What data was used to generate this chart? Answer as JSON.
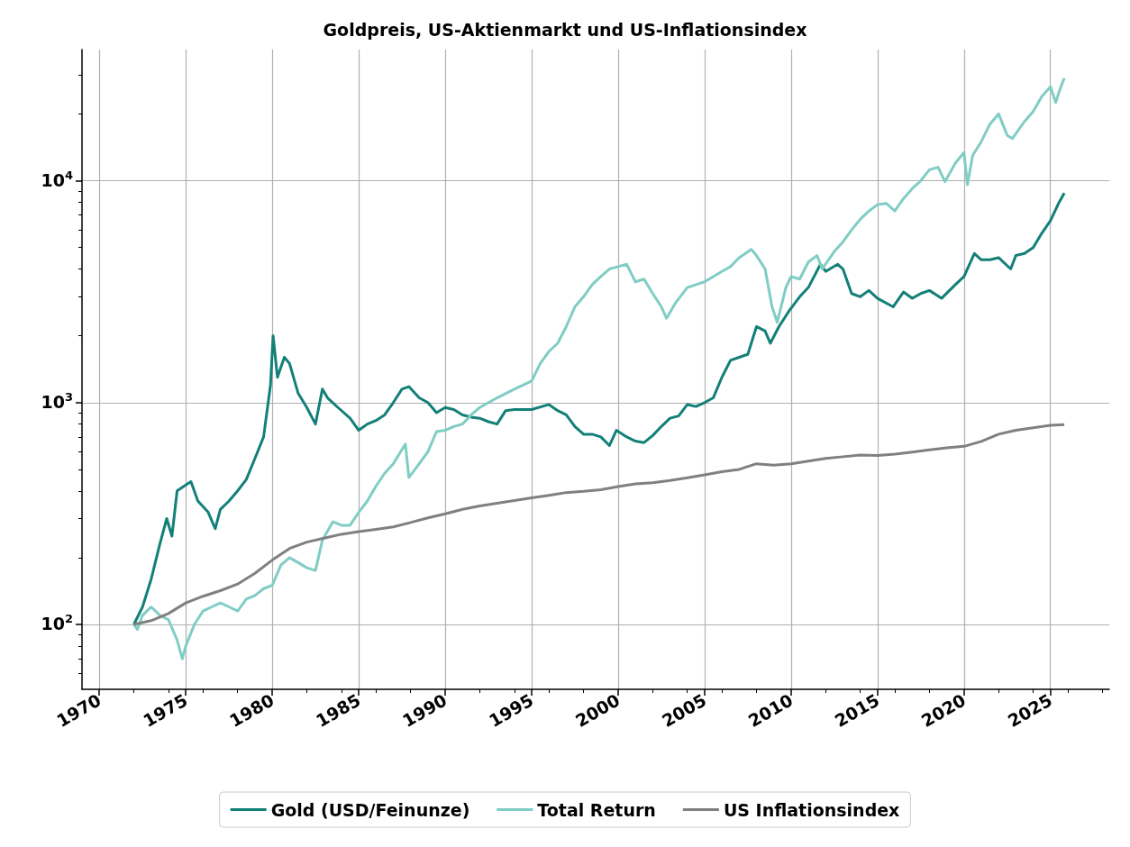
{
  "chart_data": {
    "type": "line",
    "title": "Goldpreis, US-Aktienmarkt und US-Inflationsindex",
    "log": "y",
    "grid": true,
    "legend": "bottom",
    "marker": "none",
    "line_style": "solid",
    "xlim": [
      1969,
      2028.4
    ],
    "xticks": [
      1970,
      1975,
      1980,
      1985,
      1990,
      1995,
      2000,
      2005,
      2010,
      2015,
      2020,
      2025
    ],
    "ylim": [
      51,
      39000
    ],
    "yticks": [
      {
        "value": 100,
        "label": "10$^{2}$"
      },
      {
        "value": 1000,
        "label": "10$^{3}$"
      },
      {
        "value": 10000,
        "label": "10$^{4}$"
      }
    ],
    "series": [
      {
        "name": "Gold (USD/Feinunze)",
        "color": "#138078",
        "x": [
          1972.0,
          1972.5,
          1973.0,
          1973.5,
          1973.9,
          1974.2,
          1974.5,
          1974.9,
          1975.3,
          1975.7,
          1976.3,
          1976.7,
          1977.0,
          1977.5,
          1978.0,
          1978.5,
          1979.0,
          1979.5,
          1979.9,
          1980.05,
          1980.3,
          1980.7,
          1981.0,
          1981.5,
          1982.0,
          1982.5,
          1982.9,
          1983.2,
          1983.8,
          1984.5,
          1985.0,
          1985.5,
          1986.0,
          1986.5,
          1987.0,
          1987.5,
          1987.9,
          1988.5,
          1989.0,
          1989.5,
          1990.0,
          1990.5,
          1991.0,
          1991.5,
          1992.0,
          1992.5,
          1993.0,
          1993.5,
          1994.0,
          1995.0,
          1996.0,
          1996.5,
          1997.0,
          1997.5,
          1998.0,
          1998.5,
          1999.0,
          1999.5,
          1999.9,
          2000.5,
          2001.0,
          2001.5,
          2002.0,
          2002.5,
          2003.0,
          2003.5,
          2004.0,
          2004.5,
          2005.0,
          2005.5,
          2006.0,
          2006.5,
          2007.0,
          2007.5,
          2008.0,
          2008.5,
          2008.8,
          2009.3,
          2009.9,
          2010.5,
          2011.0,
          2011.7,
          2012.0,
          2012.7,
          2013.0,
          2013.5,
          2014.0,
          2014.5,
          2015.0,
          2015.9,
          2016.5,
          2017.0,
          2017.5,
          2018.0,
          2018.7,
          2019.5,
          2020.0,
          2020.6,
          2021.0,
          2021.5,
          2022.0,
          2022.7,
          2023.0,
          2023.5,
          2024.0,
          2024.5,
          2025.0,
          2025.5,
          2025.8
        ],
        "values": [
          100,
          120,
          160,
          230,
          300,
          250,
          400,
          420,
          440,
          360,
          320,
          270,
          330,
          360,
          400,
          450,
          560,
          700,
          1200,
          2000,
          1300,
          1600,
          1500,
          1100,
          950,
          800,
          1150,
          1050,
          950,
          850,
          750,
          800,
          830,
          880,
          1000,
          1150,
          1180,
          1050,
          1000,
          900,
          950,
          930,
          880,
          860,
          850,
          820,
          800,
          920,
          930,
          930,
          980,
          920,
          880,
          780,
          720,
          720,
          700,
          640,
          750,
          700,
          670,
          660,
          710,
          780,
          850,
          870,
          980,
          960,
          1000,
          1050,
          1300,
          1550,
          1600,
          1650,
          2200,
          2100,
          1850,
          2200,
          2600,
          3000,
          3300,
          4200,
          3900,
          4200,
          4000,
          3100,
          3000,
          3200,
          2950,
          2700,
          3150,
          2950,
          3100,
          3200,
          2950,
          3400,
          3700,
          4700,
          4400,
          4400,
          4500,
          4000,
          4600,
          4700,
          5000,
          5800,
          6600,
          8000,
          8800
        ]
      },
      {
        "name": "Total Return",
        "color": "#7fcdc4",
        "x": [
          1972.0,
          1972.2,
          1972.5,
          1973.0,
          1973.5,
          1974.0,
          1974.5,
          1974.8,
          1975.0,
          1975.5,
          1976.0,
          1976.5,
          1977.0,
          1977.5,
          1978.0,
          1978.5,
          1979.0,
          1979.5,
          1980.0,
          1980.5,
          1981.0,
          1981.5,
          1982.0,
          1982.5,
          1982.9,
          1983.5,
          1984.0,
          1984.5,
          1985.0,
          1985.5,
          1986.0,
          1986.5,
          1987.0,
          1987.7,
          1987.9,
          1988.5,
          1989.0,
          1989.5,
          1990.0,
          1990.5,
          1991.0,
          1991.5,
          1992.0,
          1993.0,
          1994.0,
          1995.0,
          1995.5,
          1996.0,
          1996.5,
          1997.0,
          1997.5,
          1998.0,
          1998.5,
          1999.0,
          1999.5,
          2000.0,
          2000.5,
          2001.0,
          2001.5,
          2002.0,
          2002.5,
          2002.8,
          2003.3,
          2004.0,
          2004.5,
          2005.0,
          2006.0,
          2006.5,
          2007.0,
          2007.7,
          2008.0,
          2008.5,
          2008.9,
          2009.2,
          2009.7,
          2010.0,
          2010.5,
          2011.0,
          2011.5,
          2011.8,
          2012.5,
          2013.0,
          2013.5,
          2014.0,
          2014.5,
          2015.0,
          2015.5,
          2016.0,
          2016.5,
          2017.0,
          2017.5,
          2018.0,
          2018.5,
          2018.9,
          2019.5,
          2020.0,
          2020.2,
          2020.5,
          2021.0,
          2021.5,
          2022.0,
          2022.5,
          2022.8,
          2023.5,
          2024.0,
          2024.5,
          2025.0,
          2025.3,
          2025.6,
          2025.8
        ],
        "values": [
          100,
          95,
          110,
          120,
          110,
          105,
          85,
          70,
          80,
          100,
          115,
          120,
          125,
          120,
          115,
          130,
          135,
          145,
          150,
          185,
          200,
          190,
          180,
          175,
          240,
          290,
          280,
          280,
          320,
          360,
          420,
          480,
          530,
          650,
          460,
          530,
          600,
          740,
          750,
          780,
          800,
          880,
          950,
          1050,
          1150,
          1250,
          1500,
          1700,
          1850,
          2200,
          2700,
          3000,
          3400,
          3700,
          4000,
          4100,
          4200,
          3500,
          3600,
          3100,
          2700,
          2400,
          2800,
          3300,
          3400,
          3500,
          3900,
          4100,
          4500,
          4900,
          4600,
          4000,
          2700,
          2300,
          3300,
          3700,
          3600,
          4300,
          4600,
          4000,
          4800,
          5300,
          6000,
          6700,
          7300,
          7800,
          7900,
          7300,
          8300,
          9200,
          10000,
          11200,
          11500,
          9900,
          12000,
          13400,
          9600,
          13000,
          15000,
          18000,
          20000,
          16000,
          15500,
          18500,
          20500,
          24000,
          26500,
          22500,
          26500,
          29000
        ]
      },
      {
        "name": "US Inflationsindex",
        "color": "#808080",
        "x": [
          1972,
          1973,
          1974,
          1975,
          1976,
          1977,
          1978,
          1979,
          1980,
          1981,
          1982,
          1983,
          1984,
          1985,
          1986,
          1987,
          1988,
          1989,
          1990,
          1991,
          1992,
          1993,
          1994,
          1995,
          1996,
          1997,
          1998,
          1999,
          2000,
          2001,
          2002,
          2003,
          2004,
          2005,
          2006,
          2007,
          2008,
          2009,
          2010,
          2011,
          2012,
          2013,
          2014,
          2015,
          2016,
          2017,
          2018,
          2019,
          2020,
          2021,
          2022,
          2023,
          2024,
          2025,
          2025.8
        ],
        "values": [
          100,
          104,
          112,
          125,
          134,
          142,
          152,
          170,
          195,
          220,
          235,
          245,
          255,
          262,
          268,
          275,
          288,
          302,
          315,
          330,
          342,
          352,
          362,
          372,
          382,
          393,
          398,
          405,
          418,
          430,
          435,
          445,
          458,
          472,
          488,
          500,
          530,
          522,
          530,
          545,
          560,
          570,
          580,
          578,
          585,
          598,
          612,
          625,
          635,
          668,
          720,
          750,
          770,
          790,
          795
        ]
      }
    ]
  }
}
